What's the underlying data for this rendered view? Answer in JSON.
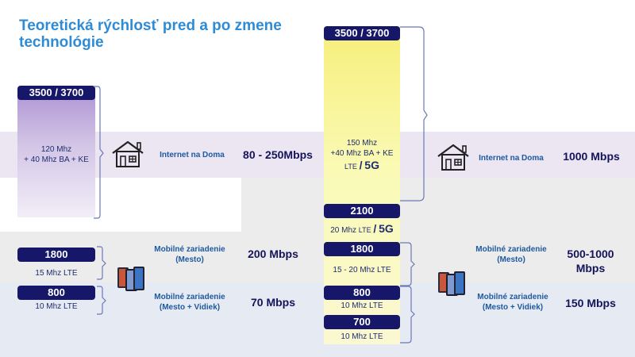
{
  "title": "Teoretická rýchlosť pred a po zmene technológie",
  "colors": {
    "title": "#2e8bd6",
    "pill": "#17176a",
    "highlight_purple": "#ece5f2",
    "highlight_gray": "#ececec",
    "highlight_blue": "#e6eaf2",
    "center_column": "#f6ef7a"
  },
  "before": {
    "band_3500": {
      "label": "3500 / 3700",
      "desc": [
        "120 Mhz",
        "+ 40 Mhz BA + KE"
      ]
    },
    "band_1800": {
      "label": "1800",
      "desc": "15 Mhz LTE"
    },
    "band_800": {
      "label": "800",
      "desc": "10 Mhz LTE"
    },
    "home": {
      "label": "Internet na Doma",
      "speed": "80 - 250Mbps"
    },
    "mobile_city": {
      "label": [
        "Mobilné zariadenie",
        "(Mesto)"
      ],
      "speed": "200 Mbps"
    },
    "mobile_rural": {
      "label": [
        "Mobilné zariadenie",
        "(Mesto + Vidiek)"
      ],
      "speed": "70 Mbps"
    }
  },
  "after": {
    "band_3500": {
      "label": "3500 / 3700",
      "desc": [
        "150 Mhz",
        "+40 Mhz BA + KE"
      ],
      "tech": "LTE",
      "sep": "/",
      "tech2": "5G"
    },
    "band_2100": {
      "label": "2100",
      "desc": "20 Mhz",
      "tech": "LTE",
      "sep": "/",
      "tech2": "5G"
    },
    "band_1800": {
      "label": "1800",
      "desc": "15 - 20 Mhz LTE"
    },
    "band_800": {
      "label": "800",
      "desc": "10 Mhz LTE"
    },
    "band_700": {
      "label": "700",
      "desc": "10 Mhz LTE"
    },
    "home": {
      "label": "Internet na Doma",
      "speed": "1000 Mbps"
    },
    "mobile_city": {
      "label": [
        "Mobilné zariadenie",
        "(Mesto)"
      ],
      "speed": [
        "500-1000",
        "Mbps"
      ]
    },
    "mobile_rural": {
      "label": [
        "Mobilné zariadenie",
        "(Mesto + Vidiek)"
      ],
      "speed": "150 Mbps"
    }
  },
  "icons": {
    "home": "house-icon",
    "mobile": "smartphones-icon"
  }
}
